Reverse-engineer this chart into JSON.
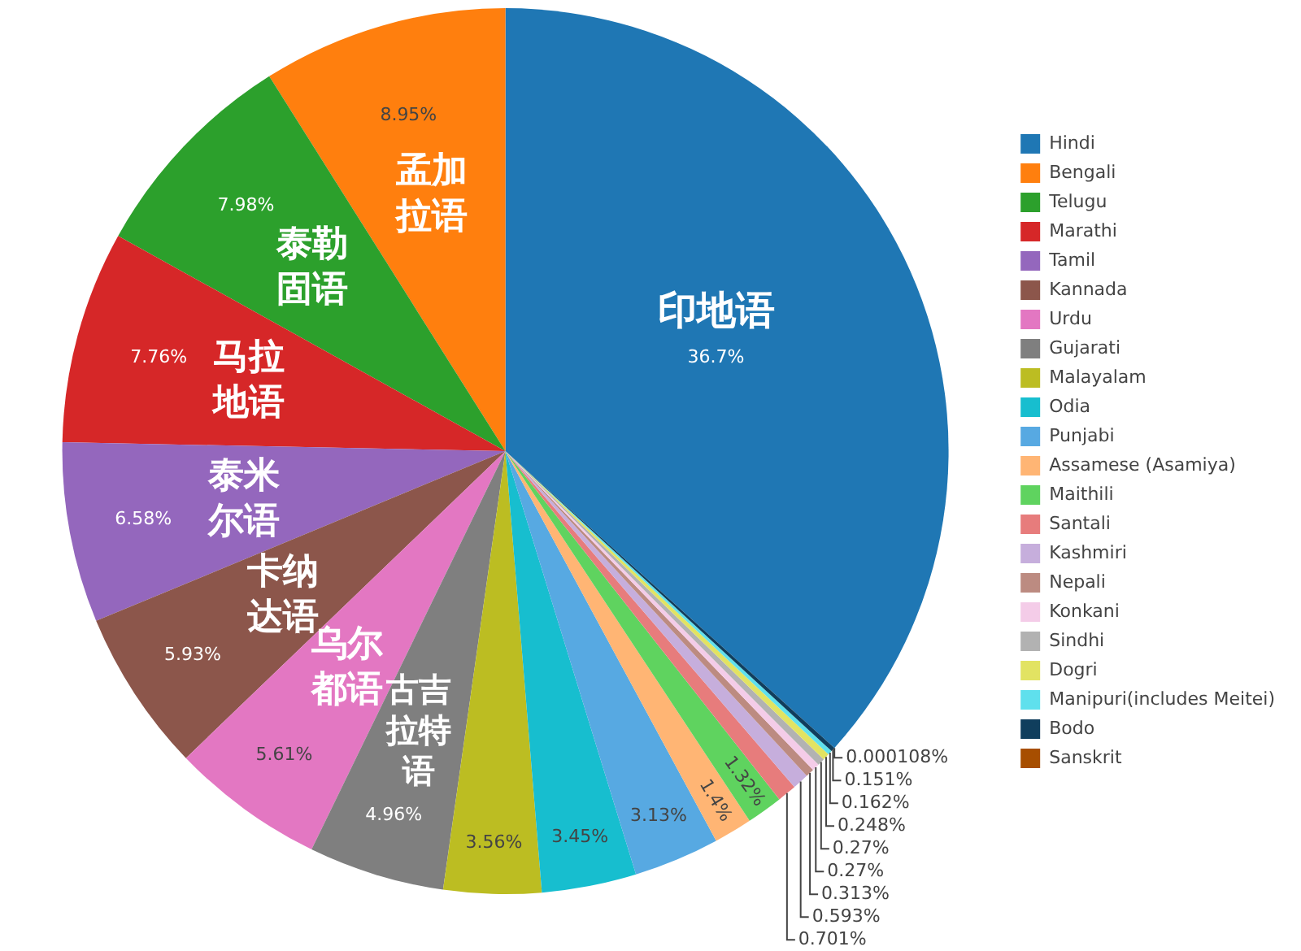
{
  "chart_data": {
    "type": "pie",
    "categories": [
      "Hindi",
      "Bengali",
      "Telugu",
      "Marathi",
      "Tamil",
      "Kannada",
      "Urdu",
      "Gujarati",
      "Malayalam",
      "Odia",
      "Punjabi",
      "Assamese (Asamiya)",
      "Maithili",
      "Santali",
      "Kashmiri",
      "Nepali",
      "Konkani",
      "Sindhi",
      "Dogri",
      "Manipuri(includes Meitei)",
      "Bodo",
      "Sanskrit"
    ],
    "values": [
      36.7,
      8.95,
      7.98,
      7.76,
      6.58,
      5.93,
      5.61,
      4.96,
      3.56,
      3.45,
      3.13,
      1.4,
      1.32,
      0.701,
      0.593,
      0.313,
      0.27,
      0.27,
      0.248,
      0.162,
      0.151,
      0.000108
    ],
    "colors": [
      "#1f77b4",
      "#ff7f0e",
      "#2ca02c",
      "#d62728",
      "#9467bd",
      "#8c564b",
      "#e377c2",
      "#7f7f7f",
      "#bcbd22",
      "#17becf",
      "#57a9e2",
      "#ffb574",
      "#5fd35f",
      "#e77c7c",
      "#c6aedc",
      "#bc8b81",
      "#f4cce8",
      "#b2b2b2",
      "#e2e362",
      "#5fe0ed",
      "#103e5d",
      "#a74e00"
    ],
    "value_labels": [
      "36.7%",
      "8.95%",
      "7.98%",
      "7.76%",
      "6.58%",
      "5.93%",
      "5.61%",
      "4.96%",
      "3.56%",
      "3.45%",
      "3.13%",
      "1.4%",
      "1.32%",
      "0.701%",
      "0.593%",
      "0.313%",
      "0.27%",
      "0.27%",
      "0.248%",
      "0.162%",
      "0.151%",
      "0.000108%"
    ],
    "legend": "right",
    "annotations": [
      {
        "text": "印地语",
        "x": "Hindi"
      },
      {
        "text": "孟加拉语",
        "x": "Bengali"
      },
      {
        "text": "泰勒固语",
        "x": "Telugu"
      },
      {
        "text": "马拉地语",
        "x": "Marathi"
      },
      {
        "text": "泰米尔语",
        "x": "Tamil"
      },
      {
        "text": "卡纳达语",
        "x": "Kannada"
      },
      {
        "text": "乌尔都语",
        "x": "Urdu"
      },
      {
        "text": "古吉拉特语",
        "x": "Gujarati"
      }
    ]
  }
}
